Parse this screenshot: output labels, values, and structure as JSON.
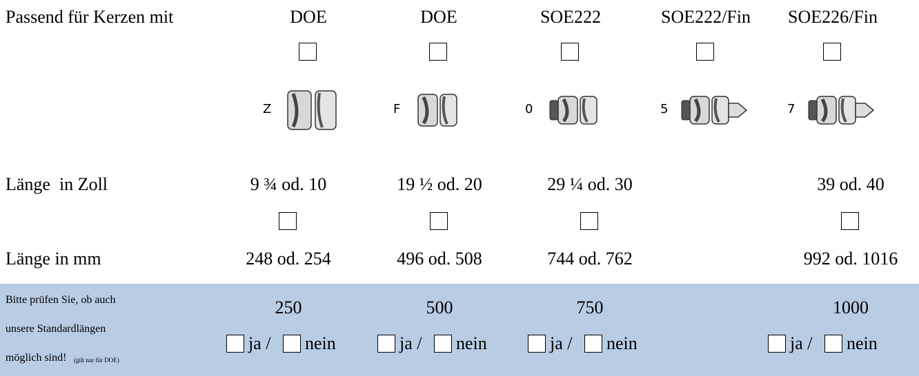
{
  "candles": {
    "label": "Passend für Kerzen mit",
    "options": [
      "DOE",
      "DOE",
      "SOE222",
      "SOE222/Fin",
      "SOE226/Fin"
    ],
    "codes": [
      "Z",
      "F",
      "0",
      "5",
      "7"
    ]
  },
  "length_inch": {
    "label": "Länge  in Zoll",
    "values": [
      "9 ¾ od. 10",
      "19 ½ od. 20",
      "29 ¼ od. 30",
      "39 od. 40"
    ]
  },
  "length_mm": {
    "label": "Länge in mm",
    "values": [
      "248 od. 254",
      "496 od. 508",
      "744 od. 762",
      "992 od. 1016"
    ]
  },
  "standard": {
    "note_lines": [
      "Bitte prüfen Sie, ob auch",
      "unsere Standardlängen",
      "möglich sind!"
    ],
    "note_small": "(gilt nur für DOE)",
    "lengths": [
      "250",
      "500",
      "750",
      "1000"
    ],
    "yes": "ja /",
    "no": "nein"
  }
}
